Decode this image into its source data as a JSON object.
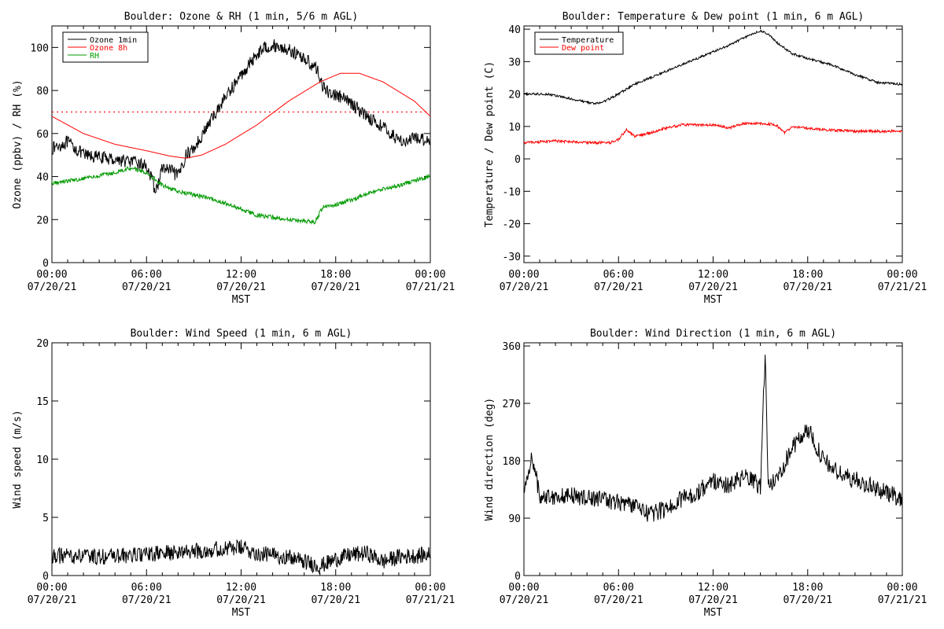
{
  "chart_data": [
    {
      "type": "line",
      "title": "Boulder: Ozone & RH (1 min, 5/6 m AGL)",
      "xlabel": "MST",
      "ylabel": "Ozone (ppbv) / RH (%)",
      "xlim": [
        0,
        24
      ],
      "ylim": [
        0,
        110
      ],
      "yticks": [
        0,
        20,
        40,
        60,
        80,
        100
      ],
      "xticks": [
        {
          "h": 0,
          "time": "00:00",
          "date": "07/20/21"
        },
        {
          "h": 6,
          "time": "06:00",
          "date": "07/20/21"
        },
        {
          "h": 12,
          "time": "12:00",
          "date": "07/20/21"
        },
        {
          "h": 18,
          "time": "18:00",
          "date": "07/20/21"
        },
        {
          "h": 24,
          "time": "00:00",
          "date": "07/21/21"
        }
      ],
      "legend": [
        {
          "label": "Ozone 1min",
          "color": "#000000"
        },
        {
          "label": "Ozone 8h",
          "color": "#ff0000"
        },
        {
          "label": "RH",
          "color": "#009900"
        }
      ],
      "legend_position": "top-left",
      "reference_line": {
        "y": 70,
        "color": "#ff0000",
        "style": "dotted"
      },
      "series": [
        {
          "name": "Ozone 1min",
          "color": "#000000",
          "noise": 3,
          "points": [
            [
              0,
              53
            ],
            [
              1,
              56
            ],
            [
              2,
              50
            ],
            [
              3,
              49
            ],
            [
              4,
              48
            ],
            [
              5,
              47
            ],
            [
              6,
              45
            ],
            [
              6.6,
              33
            ],
            [
              7,
              44
            ],
            [
              7.5,
              43
            ],
            [
              8,
              40
            ],
            [
              8.5,
              50
            ],
            [
              9,
              53
            ],
            [
              10,
              65
            ],
            [
              11,
              77
            ],
            [
              12,
              87
            ],
            [
              13,
              97
            ],
            [
              13.5,
              100
            ],
            [
              14,
              101
            ],
            [
              15,
              99
            ],
            [
              16,
              95
            ],
            [
              16.8,
              90
            ],
            [
              17.3,
              80
            ],
            [
              18,
              78
            ],
            [
              19,
              74
            ],
            [
              20,
              68
            ],
            [
              21,
              63
            ],
            [
              21.8,
              58
            ],
            [
              22.5,
              56
            ],
            [
              23,
              58
            ],
            [
              24,
              57
            ]
          ]
        },
        {
          "name": "Ozone 8h",
          "color": "#ff0000",
          "noise": 0,
          "points": [
            [
              0,
              68
            ],
            [
              2,
              60
            ],
            [
              4,
              55
            ],
            [
              6,
              52
            ],
            [
              7.5,
              49.5
            ],
            [
              8.5,
              48.5
            ],
            [
              9.5,
              50
            ],
            [
              11,
              55
            ],
            [
              13,
              64
            ],
            [
              15,
              75
            ],
            [
              17,
              84
            ],
            [
              18.3,
              88
            ],
            [
              19.5,
              88
            ],
            [
              21,
              84
            ],
            [
              23,
              75
            ],
            [
              24,
              68
            ]
          ]
        },
        {
          "name": "RH",
          "color": "#009900",
          "noise": 1,
          "points": [
            [
              0,
              37
            ],
            [
              2,
              39
            ],
            [
              4,
              42
            ],
            [
              5,
              44
            ],
            [
              6,
              42
            ],
            [
              7,
              36
            ],
            [
              8,
              33
            ],
            [
              10,
              30
            ],
            [
              12,
              25
            ],
            [
              13,
              22
            ],
            [
              15,
              20
            ],
            [
              16.7,
              19
            ],
            [
              17.2,
              26
            ],
            [
              18,
              27
            ],
            [
              19,
              29
            ],
            [
              20,
              32
            ],
            [
              22,
              36
            ],
            [
              24,
              40
            ]
          ]
        }
      ]
    },
    {
      "type": "line",
      "title": "Boulder: Temperature & Dew point (1 min, 6 m AGL)",
      "xlabel": "MST",
      "ylabel": "Temperature / Dew point (C)",
      "xlim": [
        0,
        24
      ],
      "ylim": [
        -32,
        41
      ],
      "yticks": [
        -30,
        -20,
        -10,
        0,
        10,
        20,
        30,
        40
      ],
      "xticks": [
        {
          "h": 0,
          "time": "00:00",
          "date": "07/20/21"
        },
        {
          "h": 6,
          "time": "06:00",
          "date": "07/20/21"
        },
        {
          "h": 12,
          "time": "12:00",
          "date": "07/20/21"
        },
        {
          "h": 18,
          "time": "18:00",
          "date": "07/20/21"
        },
        {
          "h": 24,
          "time": "00:00",
          "date": "07/21/21"
        }
      ],
      "legend": [
        {
          "label": "Temperature",
          "color": "#000000"
        },
        {
          "label": "Dew point",
          "color": "#ff0000"
        }
      ],
      "legend_position": "top-left",
      "series": [
        {
          "name": "Temperature",
          "color": "#000000",
          "noise": 0.35,
          "points": [
            [
              0,
              20
            ],
            [
              1.5,
              20
            ],
            [
              3,
              18.5
            ],
            [
              4.5,
              17
            ],
            [
              5,
              17.5
            ],
            [
              6,
              20
            ],
            [
              7,
              23
            ],
            [
              8,
              25
            ],
            [
              10,
              29
            ],
            [
              12,
              33
            ],
            [
              13,
              35
            ],
            [
              14,
              37.5
            ],
            [
              15,
              39.5
            ],
            [
              15.5,
              38.5
            ],
            [
              16,
              36
            ],
            [
              17,
              32.5
            ],
            [
              18,
              31
            ],
            [
              19.5,
              29
            ],
            [
              21,
              26
            ],
            [
              22.5,
              23.5
            ],
            [
              24,
              23
            ]
          ]
        },
        {
          "name": "Dew point",
          "color": "#ff0000",
          "noise": 0.4,
          "points": [
            [
              0,
              5
            ],
            [
              2,
              5.5
            ],
            [
              4,
              5
            ],
            [
              5.5,
              5
            ],
            [
              6,
              6
            ],
            [
              6.5,
              9
            ],
            [
              7,
              7
            ],
            [
              8,
              8
            ],
            [
              9,
              9.5
            ],
            [
              10,
              10.5
            ],
            [
              12,
              10.5
            ],
            [
              13,
              9.5
            ],
            [
              14,
              11
            ],
            [
              15,
              11
            ],
            [
              16,
              10.5
            ],
            [
              16.5,
              8
            ],
            [
              17,
              10
            ],
            [
              19,
              9
            ],
            [
              21,
              8.5
            ],
            [
              23,
              8.5
            ],
            [
              24,
              8.5
            ]
          ]
        }
      ]
    },
    {
      "type": "line",
      "title": "Boulder: Wind Speed (1 min, 6 m AGL)",
      "xlabel": "MST",
      "ylabel": "Wind speed (m/s)",
      "xlim": [
        0,
        24
      ],
      "ylim": [
        0,
        20
      ],
      "yticks": [
        0,
        5,
        10,
        15,
        20
      ],
      "xticks": [
        {
          "h": 0,
          "time": "00:00",
          "date": "07/20/21"
        },
        {
          "h": 6,
          "time": "06:00",
          "date": "07/20/21"
        },
        {
          "h": 12,
          "time": "12:00",
          "date": "07/20/21"
        },
        {
          "h": 18,
          "time": "18:00",
          "date": "07/20/21"
        },
        {
          "h": 24,
          "time": "00:00",
          "date": "07/21/21"
        }
      ],
      "series": [
        {
          "name": "",
          "color": "#000000",
          "noise": 0.7,
          "points": [
            [
              0,
              1.7
            ],
            [
              3,
              1.6
            ],
            [
              6,
              1.8
            ],
            [
              8,
              2
            ],
            [
              10,
              2.2
            ],
            [
              12,
              2.4
            ],
            [
              13,
              1.9
            ],
            [
              15,
              1.6
            ],
            [
              16,
              1.2
            ],
            [
              17,
              0.8
            ],
            [
              18,
              1.4
            ],
            [
              19,
              1.8
            ],
            [
              20,
              1.9
            ],
            [
              21,
              1.2
            ],
            [
              22,
              1.6
            ],
            [
              24,
              1.8
            ]
          ]
        }
      ]
    },
    {
      "type": "line",
      "title": "Boulder: Wind Direction (1 min, 6 m AGL)",
      "xlabel": "MST",
      "ylabel": "Wind direction (deg)",
      "xlim": [
        0,
        24
      ],
      "ylim": [
        0,
        365
      ],
      "yticks": [
        0,
        90,
        180,
        270,
        360
      ],
      "xticks": [
        {
          "h": 0,
          "time": "00:00",
          "date": "07/20/21"
        },
        {
          "h": 6,
          "time": "06:00",
          "date": "07/20/21"
        },
        {
          "h": 12,
          "time": "12:00",
          "date": "07/20/21"
        },
        {
          "h": 18,
          "time": "18:00",
          "date": "07/20/21"
        },
        {
          "h": 24,
          "time": "00:00",
          "date": "07/21/21"
        }
      ],
      "series": [
        {
          "name": "",
          "color": "#000000",
          "noise": 14,
          "points": [
            [
              0,
              125
            ],
            [
              0.5,
              190
            ],
            [
              1,
              125
            ],
            [
              3,
              125
            ],
            [
              5,
              120
            ],
            [
              7,
              110
            ],
            [
              8,
              95
            ],
            [
              9,
              105
            ],
            [
              10,
              120
            ],
            [
              11,
              130
            ],
            [
              12,
              150
            ],
            [
              13,
              140
            ],
            [
              14,
              155
            ],
            [
              15,
              140
            ],
            [
              15.3,
              350
            ],
            [
              15.5,
              140
            ],
            [
              16,
              150
            ],
            [
              17,
              200
            ],
            [
              18,
              230
            ],
            [
              19,
              180
            ],
            [
              20,
              160
            ],
            [
              21,
              150
            ],
            [
              22,
              140
            ],
            [
              23,
              130
            ],
            [
              24,
              120
            ]
          ]
        }
      ]
    }
  ]
}
